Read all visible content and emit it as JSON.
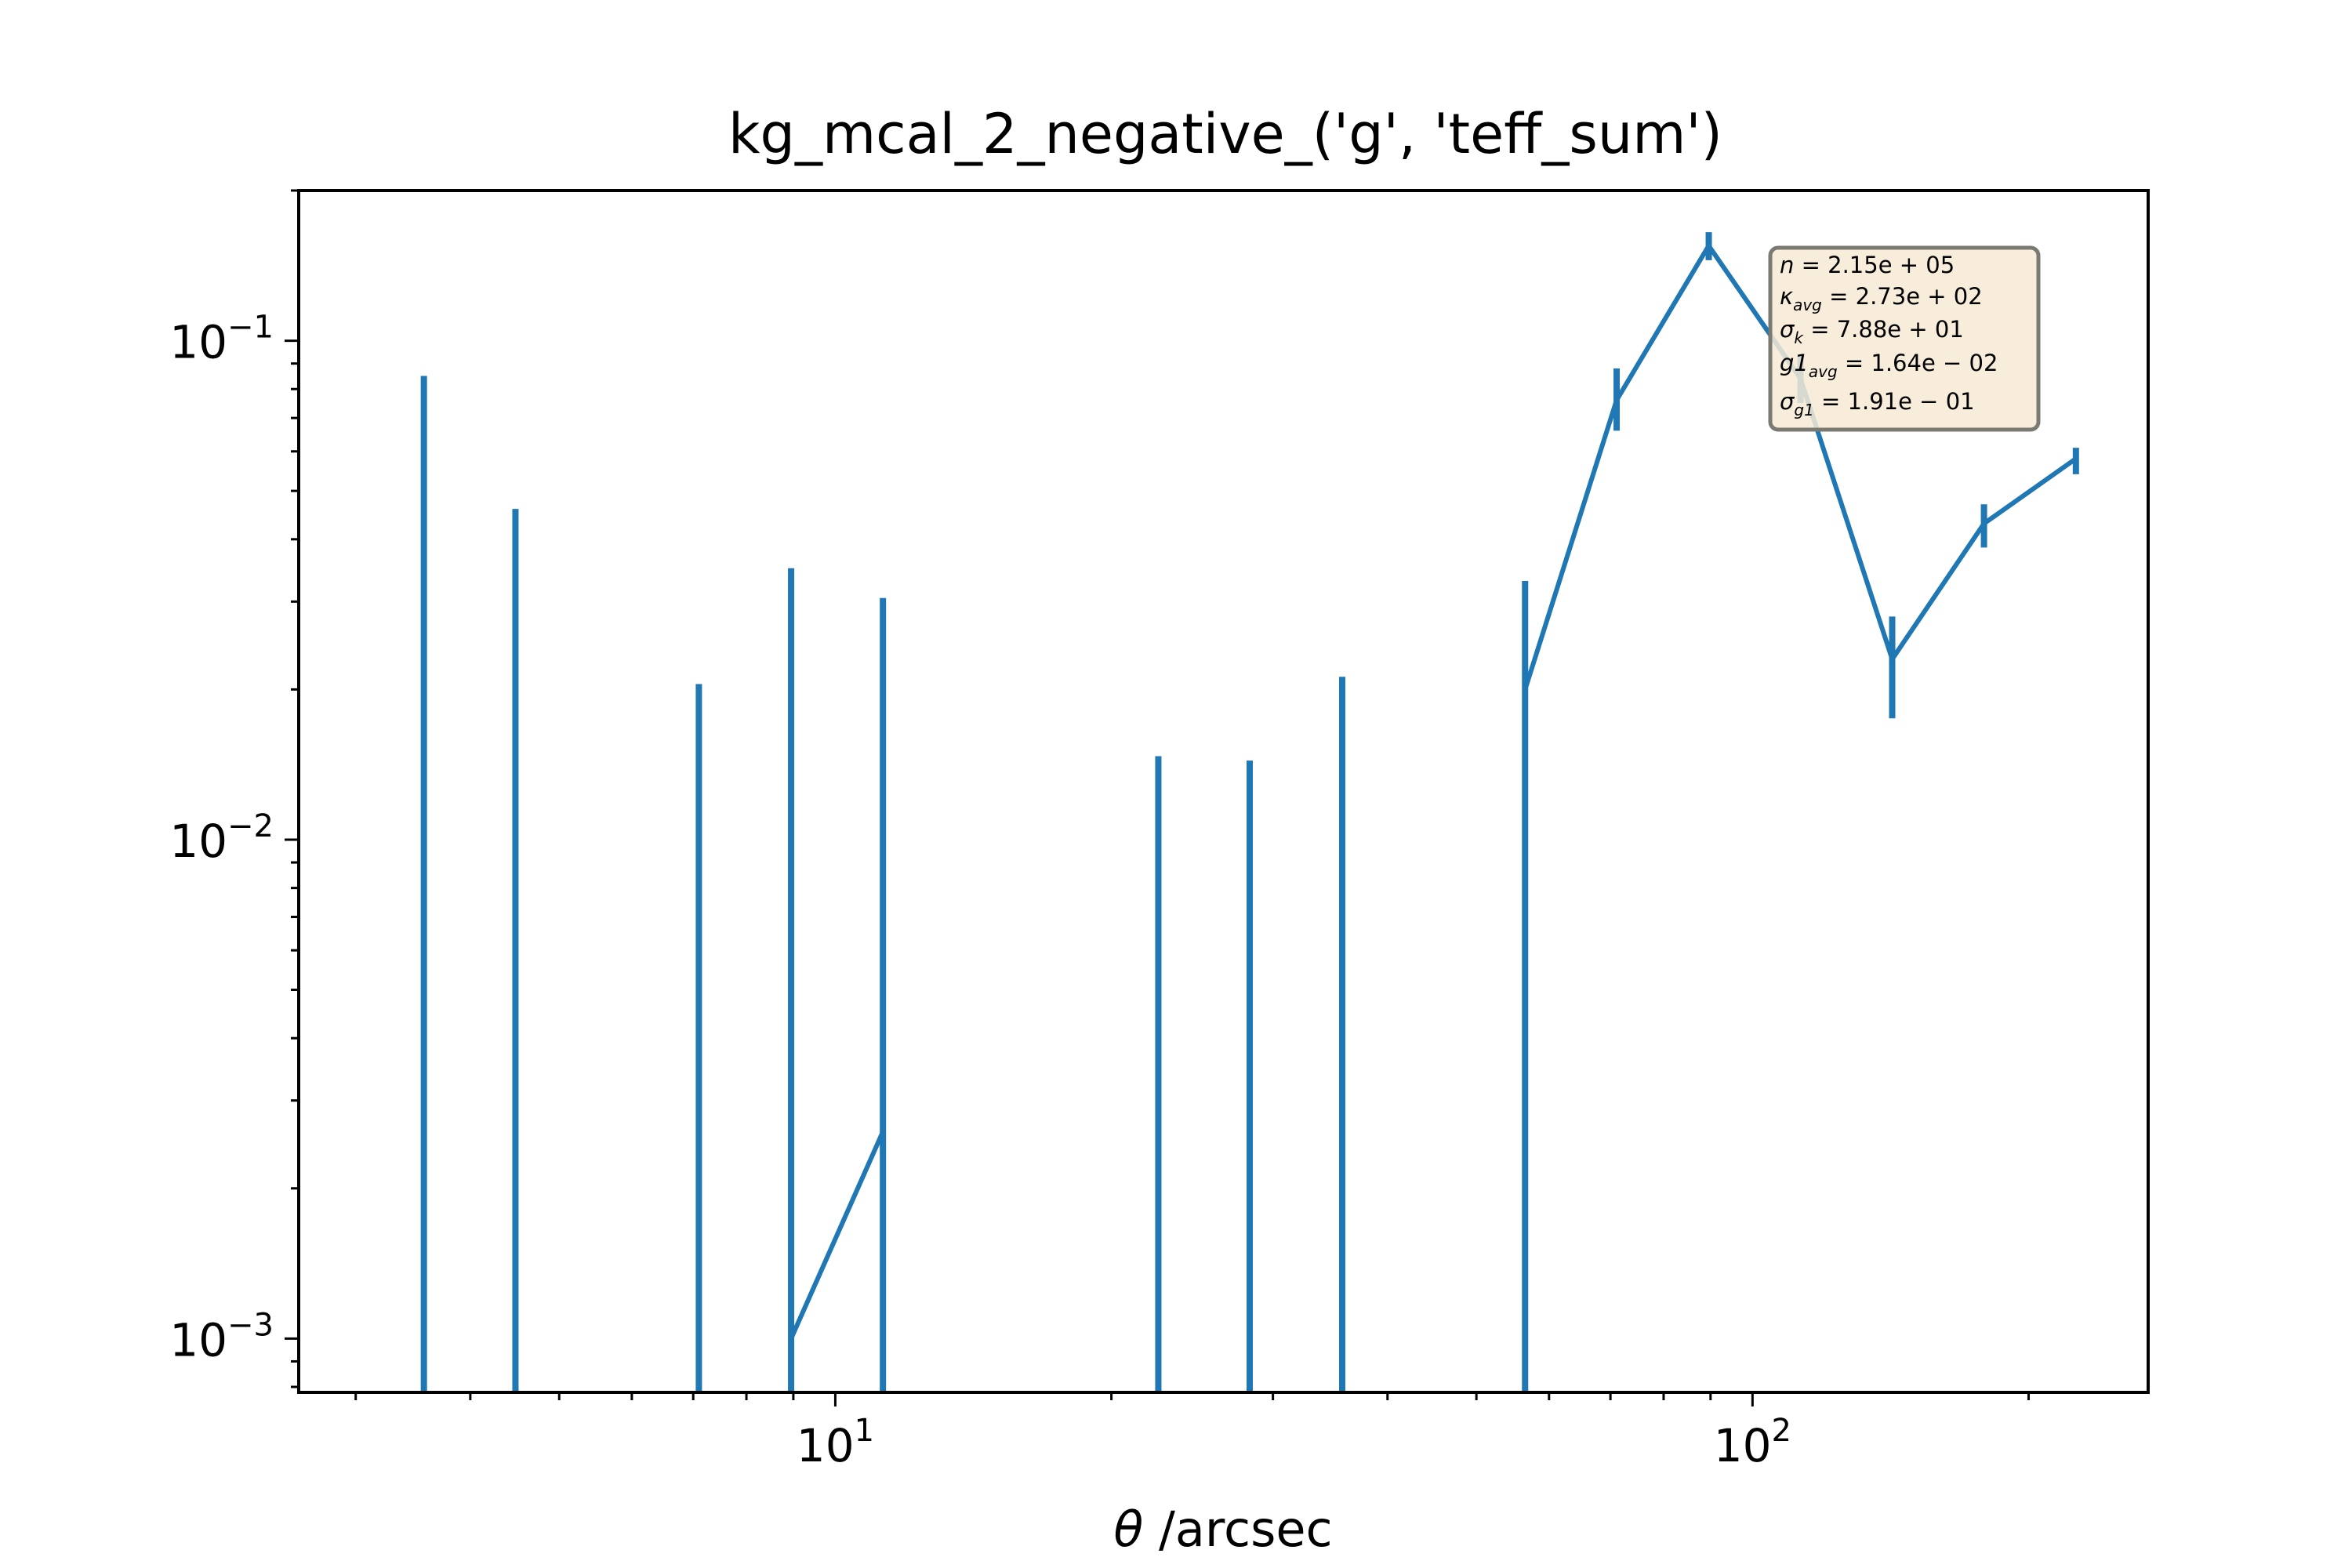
{
  "chart_data": {
    "type": "line",
    "title": "kg_mcal_2_negative_('g', 'teff_sum')",
    "xlabel_symbol": "θ",
    "xlabel_text": " /arcsec",
    "ylabel": "",
    "xscale": "log",
    "yscale": "log",
    "xlim": [
      2.6,
      270
    ],
    "ylim": [
      0.00078,
      0.2
    ],
    "grid": false,
    "color": "#1f77b4",
    "xticks": [
      {
        "value": 10,
        "base": "10",
        "exp": "1"
      },
      {
        "value": 100,
        "base": "10",
        "exp": "2"
      }
    ],
    "yticks": [
      {
        "value": 0.001,
        "base": "10",
        "exp": "−3"
      },
      {
        "value": 0.01,
        "base": "10",
        "exp": "−2"
      },
      {
        "value": 0.1,
        "base": "10",
        "exp": "−1"
      }
    ],
    "errorbars": [
      {
        "x": 3.56,
        "lo": 0.00078,
        "hi": 0.085
      },
      {
        "x": 4.48,
        "lo": 0.00078,
        "hi": 0.046
      },
      {
        "x": 7.1,
        "lo": 0.00078,
        "hi": 0.0205
      },
      {
        "x": 8.95,
        "lo": 0.00078,
        "hi": 0.035
      },
      {
        "x": 11.27,
        "lo": 0.00078,
        "hi": 0.0305
      },
      {
        "x": 22.5,
        "lo": 0.00078,
        "hi": 0.0147
      },
      {
        "x": 28.3,
        "lo": 0.00078,
        "hi": 0.0144
      },
      {
        "x": 35.7,
        "lo": 0.00078,
        "hi": 0.0212
      },
      {
        "x": 56.5,
        "lo": 0.00078,
        "hi": 0.033
      },
      {
        "x": 71.1,
        "lo": 0.066,
        "hi": 0.088
      },
      {
        "x": 89.6,
        "lo": 0.145,
        "hi": 0.165
      },
      {
        "x": 112.8,
        "lo": 0.075,
        "hi": 0.094
      },
      {
        "x": 142.0,
        "lo": 0.0175,
        "hi": 0.028
      },
      {
        "x": 178.8,
        "lo": 0.0385,
        "hi": 0.047
      },
      {
        "x": 225.2,
        "lo": 0.054,
        "hi": 0.061
      }
    ],
    "line_segments": [
      [
        [
          8.95,
          0.001
        ],
        [
          11.27,
          0.0026
        ]
      ],
      [
        [
          56.5,
          0.02
        ],
        [
          71.1,
          0.076
        ],
        [
          89.6,
          0.155
        ],
        [
          112.8,
          0.084
        ],
        [
          142.0,
          0.023
        ],
        [
          178.8,
          0.043
        ],
        [
          225.2,
          0.058
        ]
      ]
    ],
    "stats_box": {
      "n_label": "n",
      "n_value": " = 2.15e + 05",
      "kavg_label": "κ",
      "kavg_sub": "avg",
      "kavg_value": " = 2.73e + 02",
      "sk_label": "σ",
      "sk_sub": "k",
      "sk_value": " = 7.88e + 01",
      "g1avg_label": "g1",
      "g1avg_sub": "avg",
      "g1avg_value": " = 1.64e − 02",
      "sg1_label": "σ",
      "sg1_sub": "g1",
      "sg1_value": " = 1.91e − 01"
    }
  }
}
